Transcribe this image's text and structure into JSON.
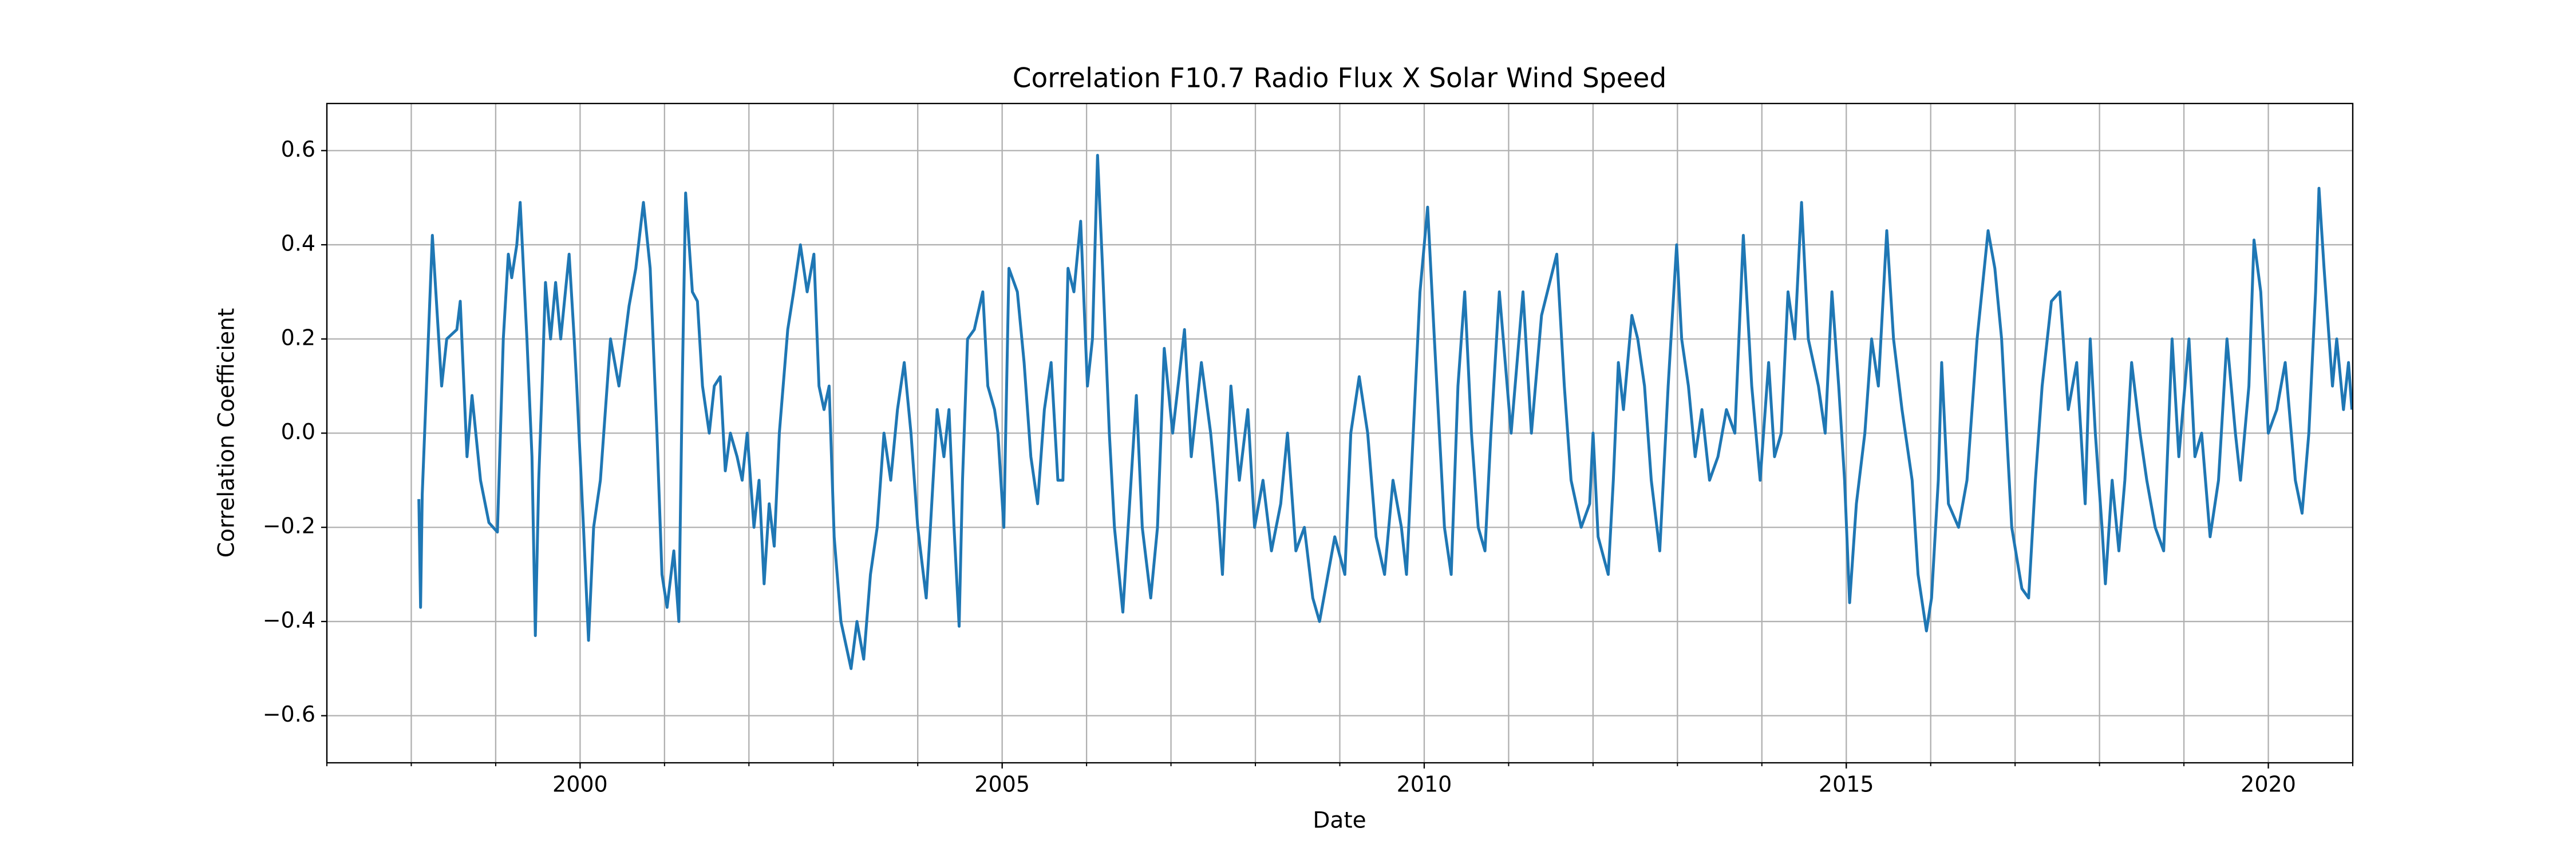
{
  "chart_data": {
    "type": "line",
    "title": "Correlation F10.7 Radio Flux X Solar Wind Speed",
    "xlabel": "Date",
    "ylabel": "Correlation Coefficient",
    "color": "#1f77b4",
    "grid": true,
    "xlim": [
      1997,
      2021
    ],
    "xticks": [
      2000,
      2005,
      2010,
      2015,
      2020
    ],
    "xminorticks": [
      1997,
      1998,
      1999,
      2000,
      2001,
      2002,
      2003,
      2004,
      2005,
      2006,
      2007,
      2008,
      2009,
      2010,
      2011,
      2012,
      2013,
      2014,
      2015,
      2016,
      2017,
      2018,
      2019,
      2020,
      2021
    ],
    "ylim": [
      -0.7,
      0.7
    ],
    "yticks": [
      {
        "value": -0.6,
        "label": "−0.6"
      },
      {
        "value": -0.4,
        "label": "−0.4"
      },
      {
        "value": -0.2,
        "label": "−0.2"
      },
      {
        "value": 0,
        "label": "0.0"
      },
      0.2,
      0.4,
      0.6
    ],
    "x": [
      1998.09,
      1998.11,
      1998.13,
      1998.25,
      1998.36,
      1998.42,
      1998.54,
      1998.58,
      1998.66,
      1998.72,
      1998.82,
      1998.92,
      1999.02,
      1999.09,
      1999.15,
      1999.19,
      1999.25,
      1999.29,
      1999.37,
      1999.43,
      1999.47,
      1999.51,
      1999.55,
      1999.59,
      1999.65,
      1999.71,
      1999.77,
      1999.87,
      1999.93,
      1999.96,
      2000.04,
      2000.1,
      2000.16,
      2000.24,
      2000.36,
      2000.46,
      2000.58,
      2000.66,
      2000.75,
      2000.83,
      2000.91,
      2000.97,
      2001.03,
      2001.11,
      2001.17,
      2001.21,
      2001.25,
      2001.33,
      2001.39,
      2001.45,
      2001.53,
      2001.59,
      2001.66,
      2001.72,
      2001.78,
      2001.86,
      2001.92,
      2001.98,
      2002.06,
      2002.12,
      2002.18,
      2002.24,
      2002.3,
      2002.36,
      2002.46,
      2002.53,
      2002.61,
      2002.69,
      2002.77,
      2002.83,
      2002.89,
      2002.95,
      2003.01,
      2003.09,
      2003.21,
      2003.28,
      2003.36,
      2003.44,
      2003.52,
      2003.6,
      2003.68,
      2003.76,
      2003.84,
      2003.92,
      2004.0,
      2004.1,
      2004.15,
      2004.23,
      2004.31,
      2004.37,
      2004.43,
      2004.49,
      2004.53,
      2004.59,
      2004.67,
      2004.77,
      2004.83,
      2004.91,
      2004.95,
      2005.02,
      2005.08,
      2005.18,
      2005.26,
      2005.34,
      2005.42,
      2005.5,
      2005.58,
      2005.66,
      2005.72,
      2005.78,
      2005.85,
      2005.93,
      2006.01,
      2006.07,
      2006.13,
      2006.19,
      2006.27,
      2006.33,
      2006.43,
      2006.51,
      2006.59,
      2006.66,
      2006.76,
      2006.84,
      2006.92,
      2007.02,
      2007.16,
      2007.24,
      2007.36,
      2007.47,
      2007.55,
      2007.61,
      2007.71,
      2007.81,
      2007.91,
      2007.99,
      2008.09,
      2008.19,
      2008.3,
      2008.38,
      2008.48,
      2008.58,
      2008.68,
      2008.76,
      2008.86,
      2008.94,
      2009.06,
      2009.13,
      2009.23,
      2009.33,
      2009.43,
      2009.53,
      2009.63,
      2009.73,
      2009.79,
      2009.87,
      2009.95,
      2010.04,
      2010.12,
      2010.24,
      2010.32,
      2010.4,
      2010.48,
      2010.56,
      2010.64,
      2010.72,
      2010.79,
      2010.89,
      2011.03,
      2011.17,
      2011.27,
      2011.39,
      2011.57,
      2011.66,
      2011.74,
      2011.86,
      2011.96,
      2012.0,
      2012.06,
      2012.18,
      2012.24,
      2012.3,
      2012.36,
      2012.46,
      2012.53,
      2012.61,
      2012.69,
      2012.79,
      2012.89,
      2012.99,
      2013.05,
      2013.13,
      2013.21,
      2013.29,
      2013.38,
      2013.48,
      2013.58,
      2013.68,
      2013.78,
      2013.88,
      2013.98,
      2014.08,
      2014.15,
      2014.23,
      2014.31,
      2014.39,
      2014.47,
      2014.55,
      2014.67,
      2014.75,
      2014.83,
      2014.91,
      2014.98,
      2015.04,
      2015.12,
      2015.22,
      2015.3,
      2015.38,
      2015.48,
      2015.56,
      2015.66,
      2015.78,
      2015.85,
      2015.95,
      2016.01,
      2016.09,
      2016.13,
      2016.21,
      2016.33,
      2016.43,
      2016.55,
      2016.68,
      2016.76,
      2016.84,
      2016.96,
      2017.08,
      2017.16,
      2017.24,
      2017.32,
      2017.43,
      2017.53,
      2017.63,
      2017.73,
      2017.83,
      2017.89,
      2017.95,
      2018.03,
      2018.07,
      2018.15,
      2018.23,
      2018.3,
      2018.38,
      2018.48,
      2018.56,
      2018.66,
      2018.76,
      2018.86,
      2018.94,
      2019.06,
      2019.13,
      2019.21,
      2019.31,
      2019.41,
      2019.51,
      2019.61,
      2019.67,
      2019.77,
      2019.83,
      2019.91,
      2020.0,
      2020.1,
      2020.2,
      2020.32,
      2020.4,
      2020.48,
      2020.56,
      2020.6,
      2020.66,
      2020.76,
      2020.81,
      2020.89,
      2020.95,
      2020.99
    ],
    "values": [
      -0.14,
      -0.37,
      -0.13,
      0.42,
      0.1,
      0.2,
      0.22,
      0.28,
      -0.05,
      0.08,
      -0.1,
      -0.19,
      -0.21,
      0.2,
      0.38,
      0.33,
      0.4,
      0.49,
      0.2,
      -0.05,
      -0.43,
      -0.1,
      0.1,
      0.32,
      0.2,
      0.32,
      0.2,
      0.38,
      0.2,
      0.1,
      -0.2,
      -0.44,
      -0.2,
      -0.1,
      0.2,
      0.1,
      0.27,
      0.35,
      0.49,
      0.35,
      0.0,
      -0.3,
      -0.37,
      -0.25,
      -0.4,
      0.1,
      0.51,
      0.3,
      0.28,
      0.1,
      0.0,
      0.1,
      0.12,
      -0.08,
      0.0,
      -0.05,
      -0.1,
      0.0,
      -0.2,
      -0.1,
      -0.32,
      -0.15,
      -0.24,
      0.0,
      0.22,
      0.3,
      0.4,
      0.3,
      0.38,
      0.1,
      0.05,
      0.1,
      -0.22,
      -0.4,
      -0.5,
      -0.4,
      -0.48,
      -0.3,
      -0.2,
      0.0,
      -0.1,
      0.05,
      0.15,
      0.0,
      -0.2,
      -0.35,
      -0.2,
      0.05,
      -0.05,
      0.05,
      -0.2,
      -0.41,
      -0.1,
      0.2,
      0.22,
      0.3,
      0.1,
      0.05,
      0.0,
      -0.2,
      0.35,
      0.3,
      0.15,
      -0.05,
      -0.15,
      0.05,
      0.15,
      -0.1,
      -0.1,
      0.35,
      0.3,
      0.45,
      0.1,
      0.2,
      0.59,
      0.35,
      0.0,
      -0.2,
      -0.38,
      -0.15,
      0.08,
      -0.2,
      -0.35,
      -0.2,
      0.18,
      0.0,
      0.22,
      -0.05,
      0.15,
      0.0,
      -0.15,
      -0.3,
      0.1,
      -0.1,
      0.05,
      -0.2,
      -0.1,
      -0.25,
      -0.15,
      0.0,
      -0.25,
      -0.2,
      -0.35,
      -0.4,
      -0.3,
      -0.22,
      -0.3,
      0.0,
      0.12,
      0.0,
      -0.22,
      -0.3,
      -0.1,
      -0.2,
      -0.3,
      0.0,
      0.3,
      0.48,
      0.2,
      -0.2,
      -0.3,
      0.1,
      0.3,
      0.0,
      -0.2,
      -0.25,
      0.0,
      0.3,
      0.0,
      0.3,
      0.0,
      0.25,
      0.38,
      0.1,
      -0.1,
      -0.2,
      -0.15,
      0.0,
      -0.22,
      -0.3,
      -0.1,
      0.15,
      0.05,
      0.25,
      0.2,
      0.1,
      -0.1,
      -0.25,
      0.1,
      0.4,
      0.2,
      0.1,
      -0.05,
      0.05,
      -0.1,
      -0.05,
      0.05,
      0.0,
      0.42,
      0.1,
      -0.1,
      0.15,
      -0.05,
      0.0,
      0.3,
      0.2,
      0.49,
      0.2,
      0.1,
      0.0,
      0.3,
      0.1,
      -0.1,
      -0.36,
      -0.15,
      0.0,
      0.2,
      0.1,
      0.43,
      0.2,
      0.05,
      -0.1,
      -0.3,
      -0.42,
      -0.35,
      -0.1,
      0.15,
      -0.15,
      -0.2,
      -0.1,
      0.2,
      0.43,
      0.35,
      0.2,
      -0.2,
      -0.33,
      -0.35,
      -0.1,
      0.1,
      0.28,
      0.3,
      0.05,
      0.15,
      -0.15,
      0.2,
      0.0,
      -0.2,
      -0.32,
      -0.1,
      -0.25,
      -0.1,
      0.15,
      0.0,
      -0.1,
      -0.2,
      -0.25,
      0.2,
      -0.05,
      0.2,
      -0.05,
      0.0,
      -0.22,
      -0.1,
      0.2,
      0.0,
      -0.1,
      0.1,
      0.41,
      0.3,
      0.0,
      0.05,
      0.15,
      -0.1,
      -0.17,
      0.0,
      0.3,
      0.52,
      0.35,
      0.1,
      0.2,
      0.05,
      0.15,
      0.05
    ]
  }
}
